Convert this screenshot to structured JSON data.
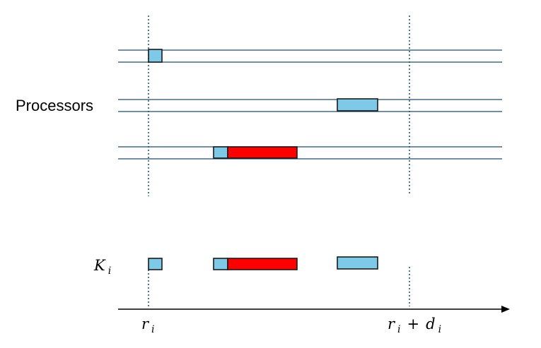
{
  "labels": {
    "processors": "Processors",
    "k": {
      "base": "K",
      "sub": "i"
    },
    "r_start": {
      "base": "r",
      "sub": "i"
    },
    "r_end": {
      "base1": "r",
      "sub1": "i",
      "op": "+",
      "base2": "d",
      "sub2": "i"
    }
  },
  "colors": {
    "lane_line": "#1f4e6b",
    "guide_line": "#1f5a6b",
    "task_light": "#7ec8e8",
    "task_red": "#ff0000",
    "axis": "#000000"
  }
}
